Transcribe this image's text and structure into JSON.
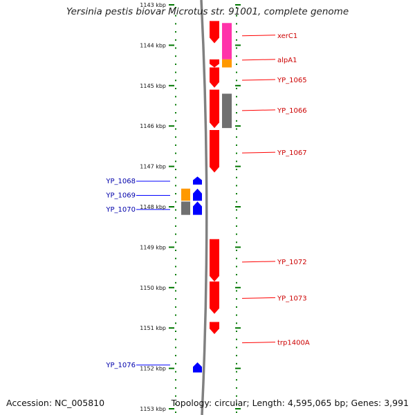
{
  "title": "Yersinia pestis biovar Microtus str. 91001, complete genome",
  "footer": {
    "accession": "Accession: NC_005810",
    "summary": "Topology: circular; Length: 4,595,065 bp; Genes: 3,991"
  },
  "colors": {
    "forward_gene": "#ff0000",
    "reverse_gene": "#0000ff",
    "cds_orange": "#ff9900",
    "cds_gray": "#707070",
    "cds_magenta": "#ff33aa",
    "tick": "#007700",
    "backbone": "#808080"
  },
  "axis": {
    "unit": "kbp",
    "ticks": [
      {
        "kbp": 1143,
        "label": "1143 kbp"
      },
      {
        "kbp": 1144,
        "label": "1144 kbp"
      },
      {
        "kbp": 1145,
        "label": "1145 kbp"
      },
      {
        "kbp": 1146,
        "label": "1146 kbp"
      },
      {
        "kbp": 1147,
        "label": "1147 kbp"
      },
      {
        "kbp": 1148,
        "label": "1148 kbp"
      },
      {
        "kbp": 1149,
        "label": "1149 kbp"
      },
      {
        "kbp": 1150,
        "label": "1150 kbp"
      },
      {
        "kbp": 1151,
        "label": "1151 kbp"
      },
      {
        "kbp": 1152,
        "label": "1152 kbp"
      },
      {
        "kbp": 1153,
        "label": "1153 kbp"
      }
    ]
  },
  "tracks": {
    "forward_genes": [
      {
        "start": 1143.4,
        "end": 1143.95,
        "color": "#ff0000"
      },
      {
        "start": 1144.35,
        "end": 1144.55,
        "color": "#ff0000"
      },
      {
        "start": 1144.55,
        "end": 1145.05,
        "color": "#ff0000"
      },
      {
        "start": 1145.1,
        "end": 1146.05,
        "color": "#ff0000"
      },
      {
        "start": 1146.1,
        "end": 1147.15,
        "color": "#ff0000"
      },
      {
        "start": 1148.8,
        "end": 1149.85,
        "color": "#ff0000"
      },
      {
        "start": 1149.85,
        "end": 1150.65,
        "color": "#ff0000"
      },
      {
        "start": 1150.85,
        "end": 1151.15,
        "color": "#ff0000"
      }
    ],
    "forward_cds": [
      {
        "start": 1143.45,
        "end": 1144.35,
        "color": "#ff33aa"
      },
      {
        "start": 1144.35,
        "end": 1144.55,
        "color": "#ff9900"
      },
      {
        "start": 1145.2,
        "end": 1146.05,
        "color": "#707070"
      }
    ],
    "reverse_genes": [
      {
        "start": 1147.25,
        "end": 1147.45,
        "color": "#0000ff"
      },
      {
        "start": 1147.55,
        "end": 1147.85,
        "color": "#0000ff"
      },
      {
        "start": 1147.87,
        "end": 1148.2,
        "color": "#0000ff"
      },
      {
        "start": 1151.85,
        "end": 1152.1,
        "color": "#0000ff"
      }
    ],
    "reverse_cds": [
      {
        "start": 1147.55,
        "end": 1147.85,
        "color": "#ff9900"
      },
      {
        "start": 1147.87,
        "end": 1148.2,
        "color": "#707070"
      }
    ]
  },
  "labels": {
    "forward": [
      {
        "text": "xerC1",
        "kbp": 1143.75
      },
      {
        "text": "alpA1",
        "kbp": 1144.35
      },
      {
        "text": "YP_1065",
        "kbp": 1144.85
      },
      {
        "text": "YP_1066",
        "kbp": 1145.6
      },
      {
        "text": "YP_1067",
        "kbp": 1146.65
      },
      {
        "text": "YP_1072",
        "kbp": 1149.35
      },
      {
        "text": "YP_1073",
        "kbp": 1150.25
      },
      {
        "text": "trp1400A",
        "kbp": 1151.35
      }
    ],
    "reverse": [
      {
        "text": "YP_1068",
        "kbp": 1147.35
      },
      {
        "text": "YP_1069",
        "kbp": 1147.7
      },
      {
        "text": "YP_1070",
        "kbp": 1148.05
      },
      {
        "text": "YP_1076",
        "kbp": 1151.9
      }
    ]
  }
}
